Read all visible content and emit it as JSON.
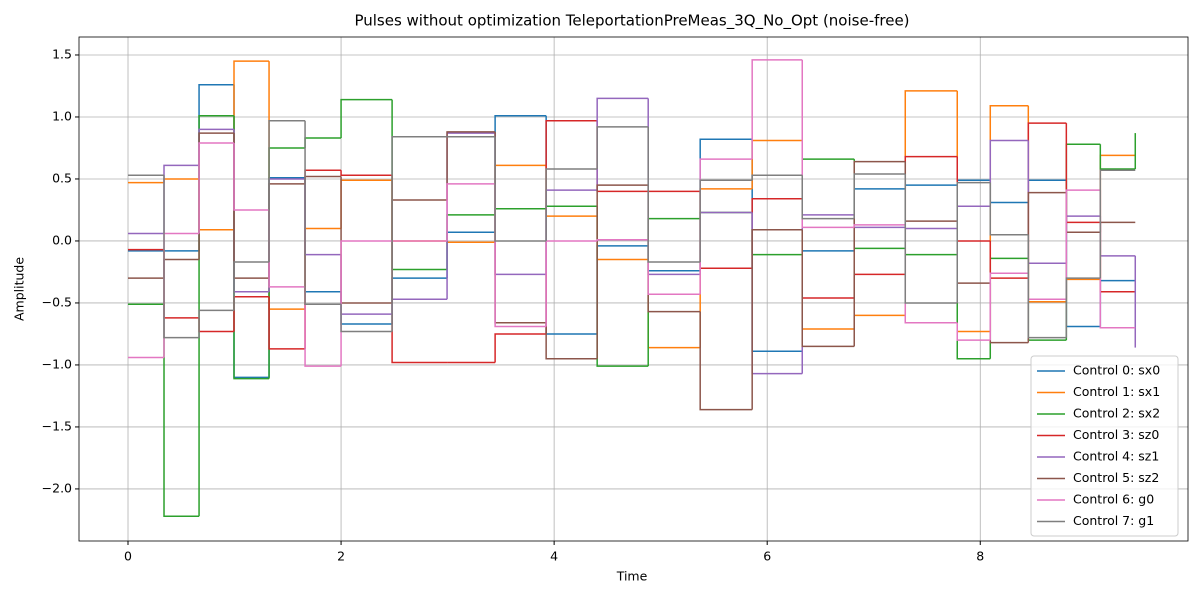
{
  "chart_data": {
    "type": "step",
    "title": "Pulses without optimization TeleportationPreMeas_3Q_No_Opt (noise-free)",
    "xlabel": "Time",
    "ylabel": "Amplitude",
    "x": [
      0,
      0.338,
      0.667,
      0.995,
      1.324,
      1.662,
      2.0,
      2.479,
      2.995,
      3.446,
      3.925,
      4.404,
      4.883,
      5.371,
      5.859,
      6.329,
      6.817,
      7.296,
      7.784,
      8.094,
      8.451,
      8.808,
      9.127,
      9.455
    ],
    "series": [
      {
        "name": "Control 0: sx0",
        "color": "#1f77b4",
        "values": [
          -0.08,
          -0.08,
          1.26,
          -1.1,
          0.51,
          -0.41,
          -0.67,
          -0.3,
          0.07,
          1.01,
          -0.75,
          -0.04,
          -0.24,
          0.82,
          -0.89,
          -0.08,
          0.42,
          0.45,
          0.49,
          0.31,
          0.49,
          -0.69,
          -0.32,
          -0.32
        ]
      },
      {
        "name": "Control 1: sx1",
        "color": "#ff7f0e",
        "values": [
          0.47,
          0.5,
          0.09,
          1.45,
          -0.55,
          0.1,
          0.49,
          0.0,
          -0.01,
          0.61,
          0.2,
          -0.15,
          -0.86,
          0.42,
          0.81,
          -0.71,
          -0.6,
          1.21,
          -0.73,
          1.09,
          -0.49,
          -0.31,
          0.69,
          0.69
        ]
      },
      {
        "name": "Control 2: sx2",
        "color": "#2ca02c",
        "values": [
          -0.51,
          -2.22,
          1.01,
          -1.11,
          0.75,
          0.83,
          1.14,
          -0.23,
          0.21,
          0.26,
          0.28,
          -1.01,
          0.18,
          0.23,
          -0.11,
          0.66,
          -0.06,
          -0.11,
          -0.95,
          -0.14,
          -0.8,
          0.78,
          0.58,
          0.87
        ]
      },
      {
        "name": "Control 3: sz0",
        "color": "#d62728",
        "values": [
          -0.07,
          -0.62,
          -0.73,
          -0.45,
          -0.87,
          0.57,
          0.53,
          -0.98,
          -0.98,
          -0.75,
          0.97,
          0.4,
          0.4,
          -0.22,
          0.34,
          -0.46,
          -0.27,
          0.68,
          0.0,
          -0.3,
          0.95,
          0.15,
          -0.41,
          -0.41
        ]
      },
      {
        "name": "Control 4: sz1",
        "color": "#9467bd",
        "values": [
          0.06,
          0.61,
          0.9,
          -0.41,
          0.5,
          -0.11,
          -0.59,
          -0.47,
          0.87,
          -0.27,
          0.41,
          1.15,
          -0.27,
          0.23,
          -1.07,
          0.21,
          0.11,
          0.1,
          0.28,
          0.81,
          -0.18,
          0.2,
          -0.12,
          -0.86
        ]
      },
      {
        "name": "Control 5: sz2",
        "color": "#8c564b",
        "values": [
          -0.3,
          -0.15,
          0.87,
          -0.3,
          0.46,
          0.52,
          -0.5,
          0.33,
          0.88,
          -0.66,
          -0.95,
          0.45,
          -0.57,
          -1.36,
          0.09,
          -0.85,
          0.64,
          0.16,
          -0.34,
          -0.82,
          0.39,
          0.07,
          0.15,
          0.15
        ]
      },
      {
        "name": "Control 6: g0",
        "color": "#e377c2",
        "values": [
          -0.94,
          0.06,
          0.79,
          0.25,
          -0.37,
          -1.01,
          0.0,
          0.0,
          0.46,
          -0.69,
          0.0,
          0.01,
          -0.43,
          0.66,
          1.46,
          0.11,
          0.13,
          -0.66,
          -0.8,
          -0.26,
          -0.47,
          0.41,
          -0.7,
          -0.7
        ]
      },
      {
        "name": "Control 7: g1",
        "color": "#7f7f7f",
        "values": [
          0.53,
          -0.78,
          -0.56,
          -0.17,
          0.97,
          -0.51,
          -0.73,
          0.84,
          0.84,
          0.0,
          0.58,
          0.92,
          -0.17,
          0.49,
          0.53,
          0.18,
          0.54,
          -0.5,
          0.47,
          0.05,
          -0.78,
          -0.3,
          0.57,
          0.57
        ]
      }
    ],
    "xlim": [
      -0.46,
      9.95
    ],
    "ylim": [
      -2.42,
      1.645
    ],
    "xticks": [
      0,
      2,
      4,
      6,
      8
    ],
    "yticks": [
      {
        "value": -2,
        "label": "−2.0"
      },
      {
        "value": -1.5,
        "label": "−1.5"
      },
      {
        "value": -1,
        "label": "−1.0"
      },
      {
        "value": -0.5,
        "label": "−0.5"
      },
      {
        "value": 0,
        "label": "0.0"
      },
      0.5,
      {
        "value": 1,
        "label": "1.0"
      },
      1.5
    ],
    "grid": true,
    "legend": "lower right"
  }
}
